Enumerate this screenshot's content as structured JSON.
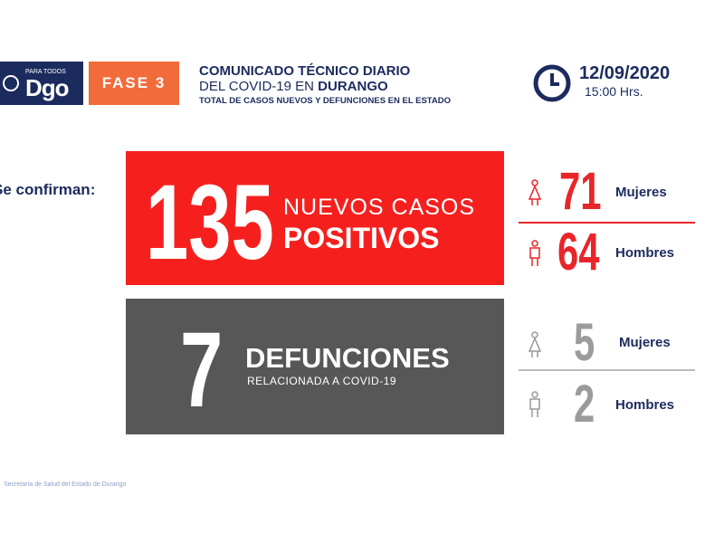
{
  "header": {
    "logo": "Dgo",
    "logo_tag": "PARA TODOS",
    "phase": "FASE 3",
    "title": "COMUNICADO TÉCNICO DIARIO",
    "subtitle_prefix": "DEL COVID-19 EN ",
    "subtitle_place": "DURANGO",
    "description": "TOTAL DE CASOS NUEVOS Y DEFUNCIONES EN EL ESTADO",
    "date": "12/09/2020",
    "time": "15:00 Hrs."
  },
  "intro": "Se confirman:",
  "cases": {
    "number": "135",
    "line1": "NUEVOS CASOS",
    "line2": "POSITIVOS",
    "women": {
      "number": "71",
      "label": "Mujeres"
    },
    "men": {
      "number": "64",
      "label": "Hombres"
    }
  },
  "deaths": {
    "number": "7",
    "line1": "DEFUNCIONES",
    "line2": "RELACIONADA A COVID-19",
    "women": {
      "number": "5",
      "label": "Mujeres"
    },
    "men": {
      "number": "2",
      "label": "Hombres"
    }
  },
  "footer": "Secretaría de Salud del Estado de Durango"
}
